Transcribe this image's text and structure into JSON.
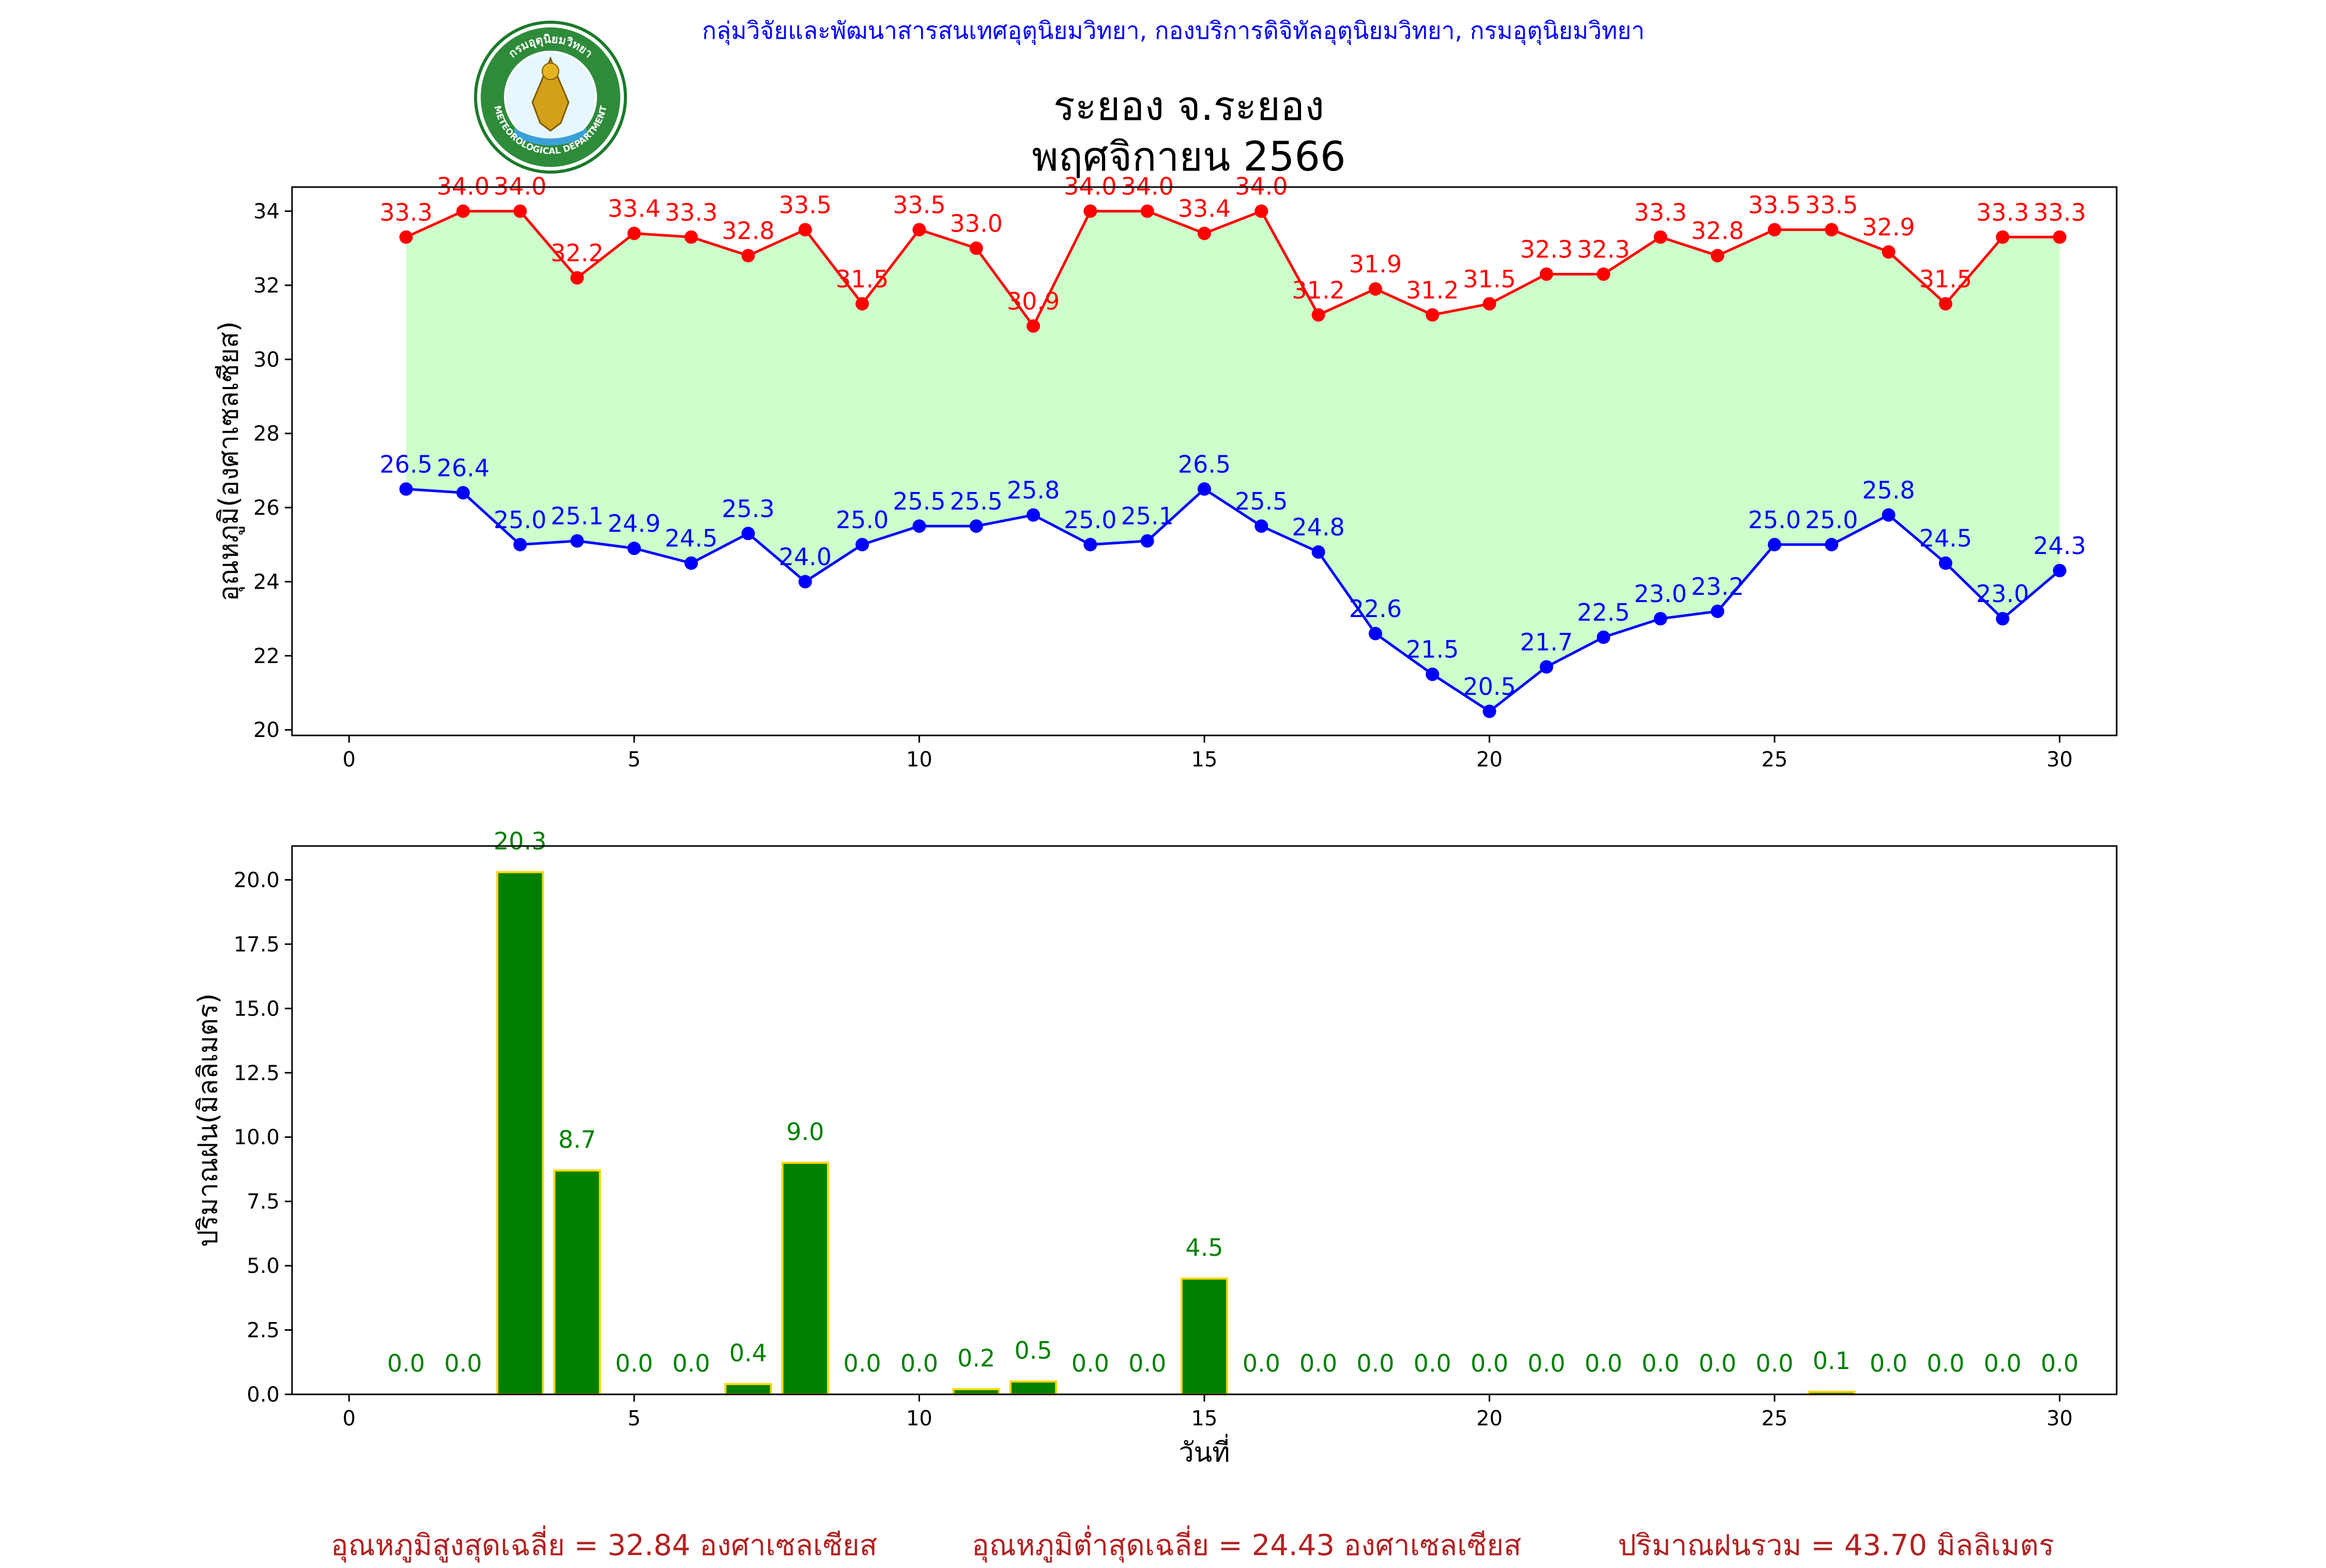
{
  "header": {
    "organization": "กลุ่มวิจัยและพัฒนาสารสนเทศอุตุนิยมวิทยา, กองบริการดิจิทัลอุตุนิยมวิทยา, กรมอุตุนิยมวิทยา",
    "station": "ระยอง จ.ระยอง",
    "period": "พฤศจิกายน 2566",
    "logo_text_top": "กรมอุตุนิยมวิทยา",
    "logo_text_bottom": "METEOROLOGICAL DEPARTMENT"
  },
  "colors": {
    "max_line": "#ff0000",
    "min_line": "#0000ff",
    "fill_between": "#ccffcc",
    "rain_bar": "#008000",
    "rain_bar_edge": "#ffd700",
    "rain_label": "#008000",
    "header_text": "#0000ff",
    "footer_text": "#b22222"
  },
  "chart_data": [
    {
      "type": "line",
      "ylabel": "อุณหภูมิ(องศาเซลเซียส)",
      "xlim": [
        -1,
        31
      ],
      "ylim": [
        19.85,
        34.65
      ],
      "xticks": [
        0,
        5,
        10,
        15,
        20,
        25,
        30
      ],
      "yticks": [
        20,
        22,
        24,
        26,
        28,
        30,
        32,
        34
      ],
      "x": [
        1,
        2,
        3,
        4,
        5,
        6,
        7,
        8,
        9,
        10,
        11,
        12,
        13,
        14,
        15,
        16,
        17,
        18,
        19,
        20,
        21,
        22,
        23,
        24,
        25,
        26,
        27,
        28,
        29,
        30
      ],
      "series": [
        {
          "key": "max",
          "values": [
            33.3,
            34.0,
            34.0,
            32.2,
            33.4,
            33.3,
            32.8,
            33.5,
            31.5,
            33.5,
            33.0,
            30.9,
            34.0,
            34.0,
            33.4,
            34.0,
            31.2,
            31.9,
            31.2,
            31.5,
            32.3,
            32.3,
            33.3,
            32.8,
            33.5,
            33.5,
            32.9,
            31.5,
            33.3,
            33.3
          ]
        },
        {
          "key": "min",
          "values": [
            26.5,
            26.4,
            25.0,
            25.1,
            24.9,
            24.5,
            25.3,
            24.0,
            25.0,
            25.5,
            25.5,
            25.8,
            25.0,
            25.1,
            26.5,
            25.5,
            24.8,
            22.6,
            21.5,
            20.5,
            21.7,
            22.5,
            23.0,
            23.2,
            25.0,
            25.0,
            25.8,
            24.5,
            23.0,
            24.3
          ]
        }
      ],
      "fill_between": true
    },
    {
      "type": "bar",
      "ylabel": "ปริมาณฝน(มิลลิเมตร)",
      "xlabel": "วันที่",
      "xlim": [
        -1,
        31
      ],
      "ylim": [
        0,
        21.315
      ],
      "xticks": [
        0,
        5,
        10,
        15,
        20,
        25,
        30
      ],
      "yticks": [
        0.0,
        2.5,
        5.0,
        7.5,
        10.0,
        12.5,
        15.0,
        17.5,
        20.0
      ],
      "x": [
        1,
        2,
        3,
        4,
        5,
        6,
        7,
        8,
        9,
        10,
        11,
        12,
        13,
        14,
        15,
        16,
        17,
        18,
        19,
        20,
        21,
        22,
        23,
        24,
        25,
        26,
        27,
        28,
        29,
        30
      ],
      "values": [
        0.0,
        0.0,
        20.3,
        8.7,
        0.0,
        0.0,
        0.4,
        9.0,
        0.0,
        0.0,
        0.2,
        0.5,
        0.0,
        0.0,
        4.5,
        0.0,
        0.0,
        0.0,
        0.0,
        0.0,
        0.0,
        0.0,
        0.0,
        0.0,
        0.0,
        0.1,
        0.0,
        0.0,
        0.0,
        0.0
      ]
    }
  ],
  "footer": {
    "avg_max": "อุณหภูมิสูงสุดเฉลี่ย = 32.84 องศาเซลเซียส",
    "avg_min": "อุณหภูมิต่ำสุดเฉลี่ย = 24.43 องศาเซลเซียส",
    "total_rain": "ปริมาณฝนรวม = 43.70 มิลลิเมตร"
  }
}
